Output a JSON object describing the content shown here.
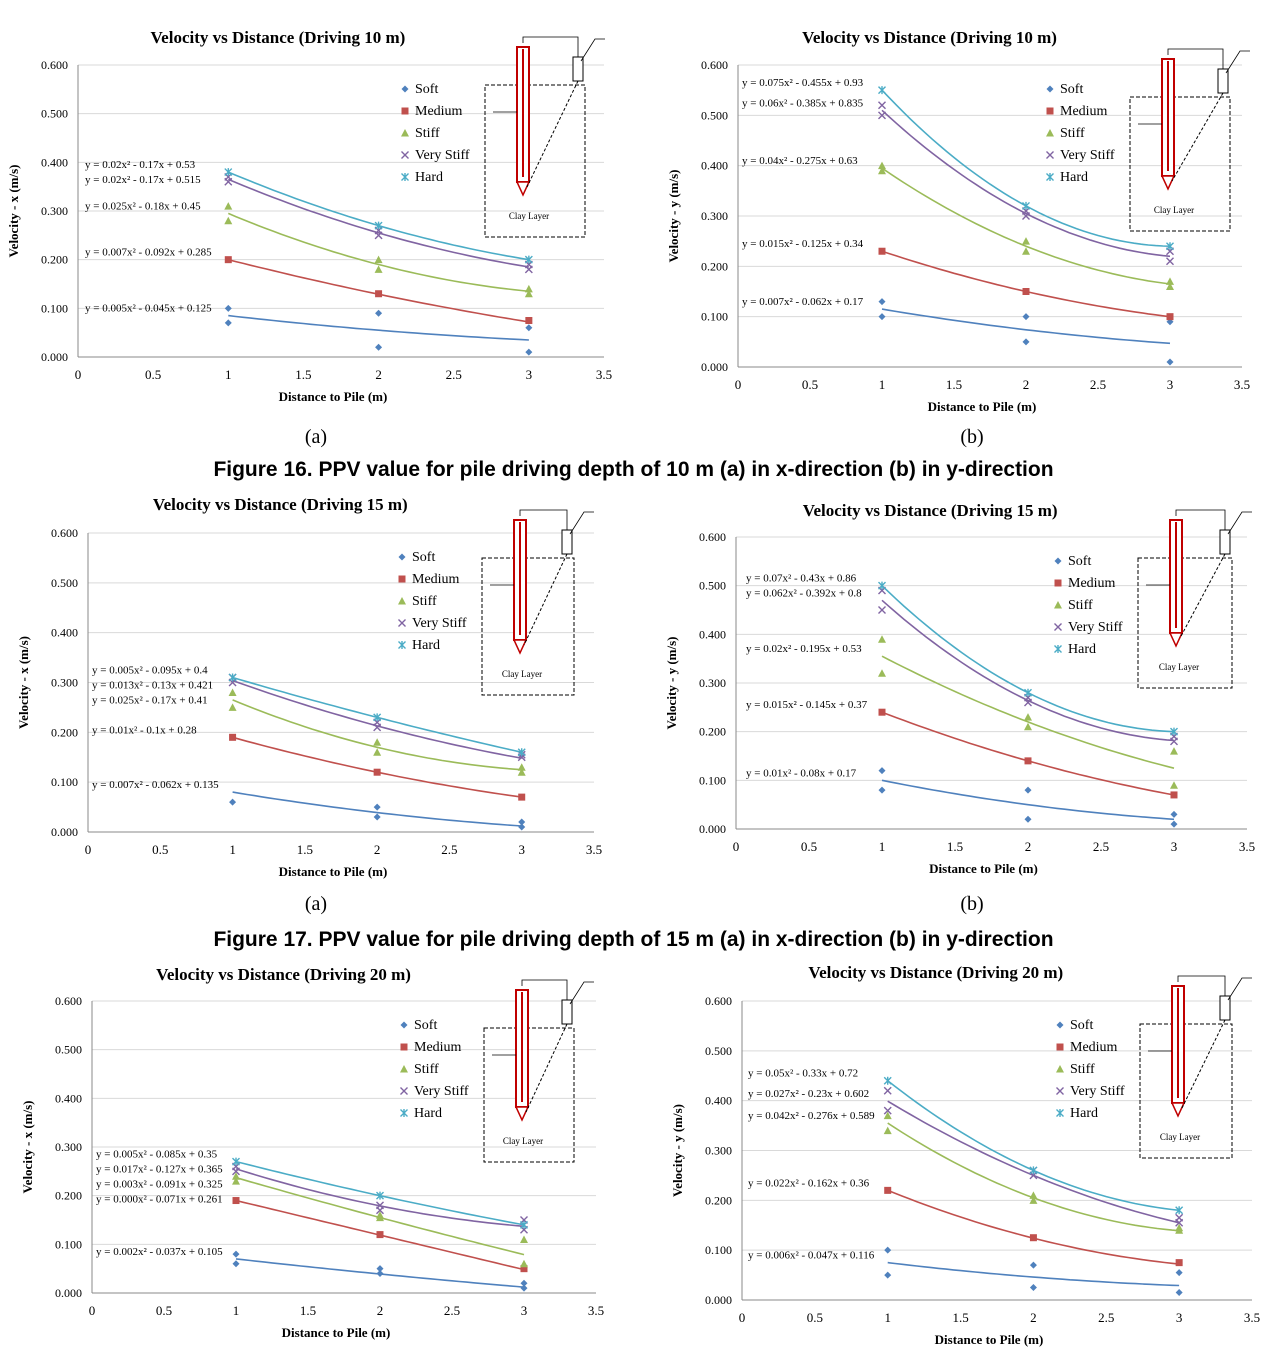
{
  "colors": {
    "Soft": "#4f81bd",
    "Medium": "#c0504d",
    "Stiff": "#9bbb59",
    "Very Stiff": "#8064a2",
    "Hard": "#4bacc6"
  },
  "inset_label": "Clay Layer",
  "sublabels": [
    "(a)",
    "(b)",
    "(a)",
    "(b)"
  ],
  "figure_captions": [
    "Figure 16. PPV value for pile driving depth of 10 m (a) in x-direction (b) in y-direction",
    "Figure 17. PPV value for pile driving depth of 15 m (a) in x-direction (b) in y-direction"
  ],
  "chart_data": [
    {
      "type": "scatter",
      "title": "Velocity vs Distance (Driving 10 m)",
      "xlabel": "Distance to Pile (m)",
      "ylabel": "Velocity - x (m/s)",
      "xlim": [
        0,
        3.5
      ],
      "ylim": [
        0,
        0.6
      ],
      "xticks": [
        "0",
        "0.5",
        "1",
        "1.5",
        "2",
        "2.5",
        "3",
        "3.5"
      ],
      "yticks": [
        "0.000",
        "0.100",
        "0.200",
        "0.300",
        "0.400",
        "0.500",
        "0.600"
      ],
      "legend": "upper-right",
      "series": [
        {
          "name": "Soft",
          "x": [
            1,
            1,
            2,
            2,
            3,
            3
          ],
          "y": [
            0.07,
            0.1,
            0.02,
            0.09,
            0.01,
            0.06
          ],
          "fit": [
            0.005,
            -0.045,
            0.125
          ],
          "equation": "y = 0.005x² - 0.045x + 0.125"
        },
        {
          "name": "Medium",
          "x": [
            1,
            2,
            3
          ],
          "y": [
            0.2,
            0.13,
            0.075
          ],
          "fit": [
            0.007,
            -0.092,
            0.285
          ],
          "equation": "y = 0.007x² - 0.092x + 0.285"
        },
        {
          "name": "Stiff",
          "x": [
            1,
            1,
            2,
            2,
            3,
            3
          ],
          "y": [
            0.28,
            0.31,
            0.18,
            0.2,
            0.13,
            0.14
          ],
          "fit": [
            0.025,
            -0.18,
            0.45
          ],
          "equation": "y = 0.025x² - 0.18x + 0.45"
        },
        {
          "name": "Very Stiff",
          "x": [
            1,
            1,
            2,
            2,
            3,
            3
          ],
          "y": [
            0.36,
            0.37,
            0.25,
            0.26,
            0.18,
            0.19
          ],
          "fit": [
            0.02,
            -0.17,
            0.515
          ],
          "equation": "y = 0.02x² - 0.17x + 0.515"
        },
        {
          "name": "Hard",
          "x": [
            1,
            2,
            3
          ],
          "y": [
            0.38,
            0.27,
            0.2
          ],
          "fit": [
            0.02,
            -0.17,
            0.53
          ],
          "equation": "y = 0.02x² - 0.17x + 0.53"
        }
      ]
    },
    {
      "type": "scatter",
      "title": "Velocity vs Distance (Driving 10 m)",
      "xlabel": "Distance to Pile (m)",
      "ylabel": "Velocity - y (m/s)",
      "xlim": [
        0,
        3.5
      ],
      "ylim": [
        0,
        0.6
      ],
      "xticks": [
        "0",
        "0.5",
        "1",
        "1.5",
        "2",
        "2.5",
        "3",
        "3.5"
      ],
      "yticks": [
        "0.000",
        "0.100",
        "0.200",
        "0.300",
        "0.400",
        "0.500",
        "0.600"
      ],
      "legend": "upper-right",
      "series": [
        {
          "name": "Soft",
          "x": [
            1,
            1,
            2,
            2,
            3,
            3
          ],
          "y": [
            0.1,
            0.13,
            0.05,
            0.1,
            0.01,
            0.09
          ],
          "fit": [
            0.007,
            -0.062,
            0.17
          ],
          "equation": "y = 0.007x² - 0.062x + 0.17"
        },
        {
          "name": "Medium",
          "x": [
            1,
            2,
            3
          ],
          "y": [
            0.23,
            0.15,
            0.1
          ],
          "fit": [
            0.015,
            -0.125,
            0.34
          ],
          "equation": "y = 0.015x² - 0.125x + 0.34"
        },
        {
          "name": "Stiff",
          "x": [
            1,
            1,
            2,
            2,
            3,
            3
          ],
          "y": [
            0.39,
            0.4,
            0.23,
            0.25,
            0.16,
            0.17
          ],
          "fit": [
            0.04,
            -0.275,
            0.63
          ],
          "equation": "y = 0.04x² - 0.275x + 0.63"
        },
        {
          "name": "Very Stiff",
          "x": [
            1,
            1,
            2,
            2,
            3,
            3
          ],
          "y": [
            0.5,
            0.52,
            0.3,
            0.31,
            0.21,
            0.23
          ],
          "fit": [
            0.06,
            -0.385,
            0.835
          ],
          "equation": "y = 0.06x² - 0.385x + 0.835"
        },
        {
          "name": "Hard",
          "x": [
            1,
            2,
            3
          ],
          "y": [
            0.55,
            0.32,
            0.24
          ],
          "fit": [
            0.075,
            -0.455,
            0.93
          ],
          "equation": "y = 0.075x² - 0.455x + 0.93"
        }
      ]
    },
    {
      "type": "scatter",
      "title": "Velocity vs Distance (Driving 15 m)",
      "xlabel": "Distance to Pile (m)",
      "ylabel": "Velocity - x (m/s)",
      "xlim": [
        0,
        3.5
      ],
      "ylim": [
        0,
        0.6
      ],
      "xticks": [
        "0",
        "0.5",
        "1",
        "1.5",
        "2",
        "2.5",
        "3",
        "3.5"
      ],
      "yticks": [
        "0.000",
        "0.100",
        "0.200",
        "0.300",
        "0.400",
        "0.500",
        "0.600"
      ],
      "legend": "upper-right",
      "series": [
        {
          "name": "Soft",
          "x": [
            1,
            2,
            2,
            3,
            3
          ],
          "y": [
            0.06,
            0.03,
            0.05,
            0.01,
            0.02
          ],
          "fit": [
            0.007,
            -0.062,
            0.135
          ],
          "equation": "y = 0.007x² - 0.062x + 0.135"
        },
        {
          "name": "Medium",
          "x": [
            1,
            2,
            3
          ],
          "y": [
            0.19,
            0.12,
            0.07
          ],
          "fit": [
            0.01,
            -0.1,
            0.28
          ],
          "equation": "y = 0.01x² - 0.1x + 0.28"
        },
        {
          "name": "Stiff",
          "x": [
            1,
            1,
            2,
            2,
            3,
            3
          ],
          "y": [
            0.25,
            0.28,
            0.16,
            0.18,
            0.12,
            0.13
          ],
          "fit": [
            0.025,
            -0.17,
            0.41
          ],
          "equation": "y = 0.025x² - 0.17x + 0.41"
        },
        {
          "name": "Very Stiff",
          "x": [
            1,
            1,
            2,
            2,
            3,
            3
          ],
          "y": [
            0.3,
            0.31,
            0.21,
            0.22,
            0.15,
            0.155
          ],
          "fit": [
            0.013,
            -0.13,
            0.421
          ],
          "equation": "y = 0.013x² - 0.13x + 0.421"
        },
        {
          "name": "Hard",
          "x": [
            1,
            2,
            3
          ],
          "y": [
            0.31,
            0.23,
            0.16
          ],
          "fit": [
            0.005,
            -0.095,
            0.4
          ],
          "equation": "y = 0.005x² - 0.095x + 0.4"
        }
      ]
    },
    {
      "type": "scatter",
      "title": "Velocity vs Distance (Driving 15 m)",
      "xlabel": "Distance to Pile (m)",
      "ylabel": "Velocity - y (m/s)",
      "xlim": [
        0,
        3.5
      ],
      "ylim": [
        0,
        0.6
      ],
      "xticks": [
        "0",
        "0.5",
        "1",
        "1.5",
        "2",
        "2.5",
        "3",
        "3.5"
      ],
      "yticks": [
        "0.000",
        "0.100",
        "0.200",
        "0.300",
        "0.400",
        "0.500",
        "0.600"
      ],
      "legend": "upper-right",
      "series": [
        {
          "name": "Soft",
          "x": [
            1,
            1,
            2,
            2,
            3,
            3
          ],
          "y": [
            0.08,
            0.12,
            0.02,
            0.08,
            0.01,
            0.03
          ],
          "fit": [
            0.01,
            -0.08,
            0.17
          ],
          "equation": "y = 0.01x² - 0.08x + 0.17"
        },
        {
          "name": "Medium",
          "x": [
            1,
            2,
            3
          ],
          "y": [
            0.24,
            0.14,
            0.07
          ],
          "fit": [
            0.015,
            -0.145,
            0.37
          ],
          "equation": "y = 0.015x² - 0.145x + 0.37"
        },
        {
          "name": "Stiff",
          "x": [
            1,
            1,
            2,
            2,
            3,
            3
          ],
          "y": [
            0.32,
            0.39,
            0.21,
            0.23,
            0.09,
            0.16
          ],
          "fit": [
            0.02,
            -0.195,
            0.53
          ],
          "equation": "y = 0.02x² - 0.195x + 0.53"
        },
        {
          "name": "Very Stiff",
          "x": [
            1,
            1,
            2,
            2,
            3,
            3
          ],
          "y": [
            0.45,
            0.49,
            0.26,
            0.27,
            0.18,
            0.19
          ],
          "fit": [
            0.062,
            -0.392,
            0.8
          ],
          "equation": "y = 0.062x² - 0.392x + 0.8"
        },
        {
          "name": "Hard",
          "x": [
            1,
            2,
            3
          ],
          "y": [
            0.5,
            0.28,
            0.2
          ],
          "fit": [
            0.07,
            -0.43,
            0.86
          ],
          "equation": "y = 0.07x² - 0.43x + 0.86"
        }
      ]
    },
    {
      "type": "scatter",
      "title": "Velocity vs Distance (Driving 20 m)",
      "xlabel": "Distance to Pile (m)",
      "ylabel": "Velocity - x (m/s)",
      "xlim": [
        0,
        3.5
      ],
      "ylim": [
        0,
        0.6
      ],
      "xticks": [
        "0",
        "0.5",
        "1",
        "1.5",
        "2",
        "2.5",
        "3",
        "3.5"
      ],
      "yticks": [
        "0.000",
        "0.100",
        "0.200",
        "0.300",
        "0.400",
        "0.500",
        "0.600"
      ],
      "legend": "upper-right",
      "series": [
        {
          "name": "Soft",
          "x": [
            1,
            1,
            2,
            2,
            3,
            3
          ],
          "y": [
            0.06,
            0.08,
            0.04,
            0.05,
            0.01,
            0.02
          ],
          "fit": [
            0.002,
            -0.037,
            0.105
          ],
          "equation": "y = 0.002x² - 0.037x + 0.105"
        },
        {
          "name": "Medium",
          "x": [
            1,
            2,
            3
          ],
          "y": [
            0.19,
            0.12,
            0.05
          ],
          "fit": [
            0.0,
            -0.071,
            0.261
          ],
          "equation": "y = 0.000x² - 0.071x + 0.261"
        },
        {
          "name": "Stiff",
          "x": [
            1,
            1,
            2,
            2,
            3,
            3
          ],
          "y": [
            0.23,
            0.24,
            0.155,
            0.16,
            0.06,
            0.11
          ],
          "fit": [
            0.003,
            -0.091,
            0.325
          ],
          "equation": "y = 0.003x² - 0.091x + 0.325"
        },
        {
          "name": "Very Stiff",
          "x": [
            1,
            1,
            2,
            2,
            3,
            3
          ],
          "y": [
            0.25,
            0.26,
            0.17,
            0.18,
            0.13,
            0.15
          ],
          "fit": [
            0.017,
            -0.127,
            0.365
          ],
          "equation": "y = 0.017x² - 0.127x + 0.365"
        },
        {
          "name": "Hard",
          "x": [
            1,
            2,
            3
          ],
          "y": [
            0.27,
            0.2,
            0.14
          ],
          "fit": [
            0.005,
            -0.085,
            0.35
          ],
          "equation": "y = 0.005x² - 0.085x + 0.35"
        }
      ]
    },
    {
      "type": "scatter",
      "title": "Velocity vs Distance (Driving 20 m)",
      "xlabel": "Distance to Pile (m)",
      "ylabel": "Velocity - y (m/s)",
      "xlim": [
        0,
        3.5
      ],
      "ylim": [
        0,
        0.6
      ],
      "xticks": [
        "0",
        "0.5",
        "1",
        "1.5",
        "2",
        "2.5",
        "3",
        "3.5"
      ],
      "yticks": [
        "0.000",
        "0.100",
        "0.200",
        "0.300",
        "0.400",
        "0.500",
        "0.600"
      ],
      "legend": "upper-right",
      "series": [
        {
          "name": "Soft",
          "x": [
            1,
            1,
            2,
            2,
            3,
            3
          ],
          "y": [
            0.05,
            0.1,
            0.025,
            0.07,
            0.015,
            0.055
          ],
          "fit": [
            0.006,
            -0.047,
            0.116
          ],
          "equation": "y = 0.006x² - 0.047x + 0.116"
        },
        {
          "name": "Medium",
          "x": [
            1,
            2,
            3
          ],
          "y": [
            0.22,
            0.125,
            0.075
          ],
          "fit": [
            0.022,
            -0.162,
            0.36
          ],
          "equation": "y = 0.022x² - 0.162x + 0.36"
        },
        {
          "name": "Stiff",
          "x": [
            1,
            1,
            2,
            2,
            3,
            3
          ],
          "y": [
            0.34,
            0.37,
            0.2,
            0.21,
            0.14,
            0.145
          ],
          "fit": [
            0.042,
            -0.276,
            0.589
          ],
          "equation": "y = 0.042x² - 0.276x + 0.589"
        },
        {
          "name": "Very Stiff",
          "x": [
            1,
            1,
            2,
            2,
            3,
            3
          ],
          "y": [
            0.38,
            0.42,
            0.25,
            0.26,
            0.155,
            0.165
          ],
          "fit": [
            0.027,
            -0.23,
            0.602
          ],
          "equation": "y = 0.027x² - 0.23x + 0.602"
        },
        {
          "name": "Hard",
          "x": [
            1,
            2,
            3
          ],
          "y": [
            0.44,
            0.26,
            0.18
          ],
          "fit": [
            0.05,
            -0.33,
            0.72
          ],
          "equation": "y = 0.05x² - 0.33x + 0.72"
        }
      ]
    }
  ]
}
